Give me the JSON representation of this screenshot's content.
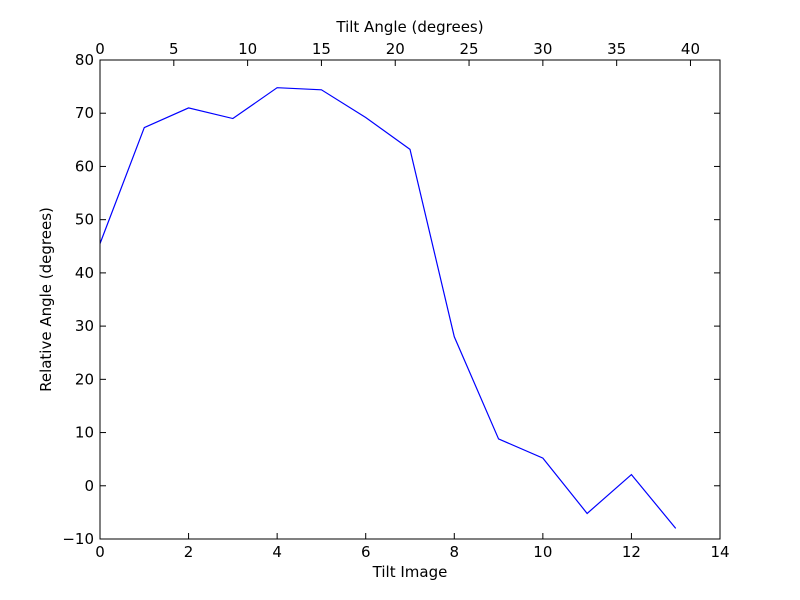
{
  "chart_data": {
    "type": "line",
    "xlabel": "Tilt Image",
    "ylabel": "Relative Angle (degrees)",
    "x2label": "Tilt Angle (degrees)",
    "xlim": [
      0,
      14
    ],
    "ylim": [
      -10,
      80
    ],
    "x2lim": [
      0,
      42
    ],
    "xticks": [
      "0",
      "2",
      "4",
      "6",
      "8",
      "10",
      "12",
      "14"
    ],
    "yticks": [
      "−10",
      "0",
      "10",
      "20",
      "30",
      "40",
      "50",
      "60",
      "70",
      "80"
    ],
    "x2ticks": [
      "0",
      "5",
      "10",
      "15",
      "20",
      "25",
      "30",
      "35",
      "40"
    ],
    "grid": false,
    "line_color": "#0000ff",
    "series": [
      {
        "x": [
          0,
          1,
          2,
          3,
          4,
          5,
          6,
          7,
          8,
          9,
          10,
          11,
          12,
          13
        ],
        "y": [
          45.5,
          67.3,
          71.0,
          69.0,
          74.8,
          74.4,
          69.2,
          63.2,
          28.0,
          8.8,
          5.2,
          -5.2,
          2.1,
          -8.0
        ]
      }
    ]
  }
}
